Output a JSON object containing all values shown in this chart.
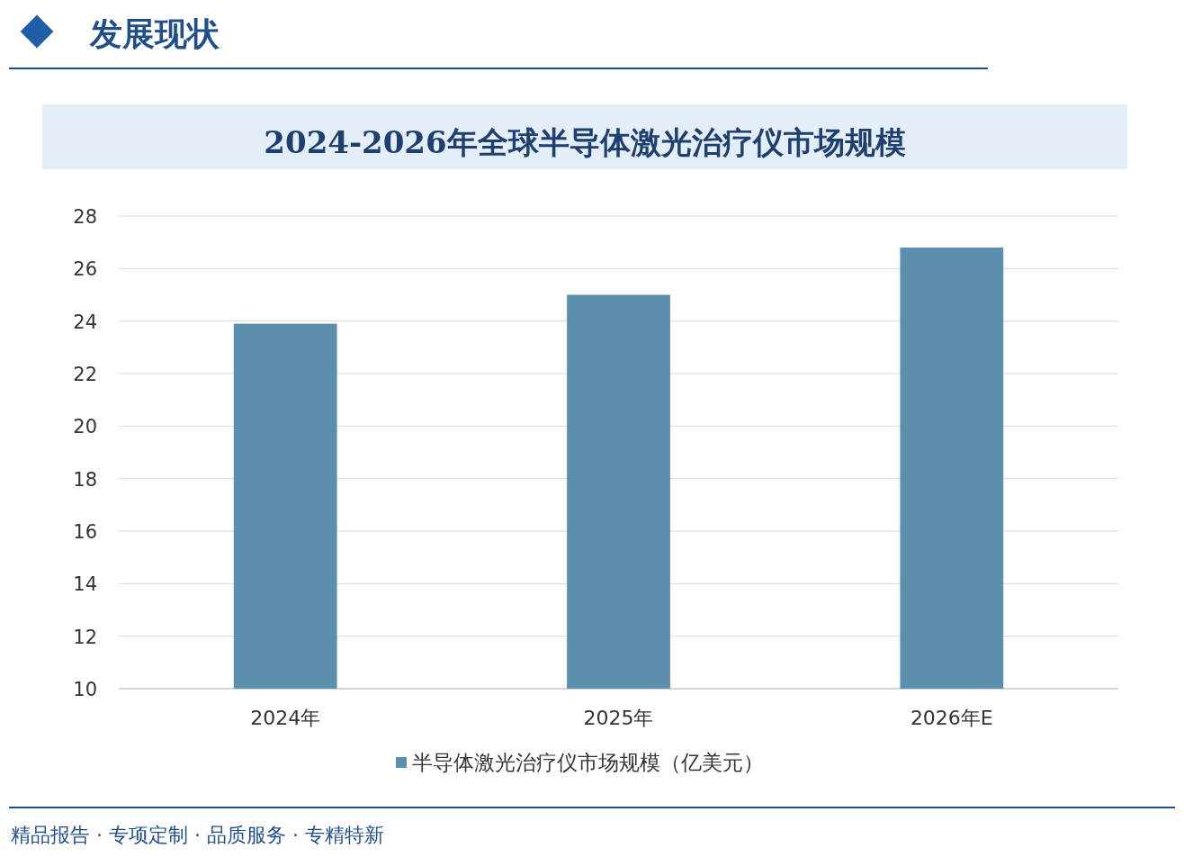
{
  "chart_data": {
    "type": "bar",
    "title": "2024-2026年全球半导体激光治疗仪市场规模",
    "categories": [
      "2024年",
      "2025年",
      "2026年E"
    ],
    "series": [
      {
        "name": "半导体激光治疗仪市场规模（亿美元）",
        "color": "#5b8fad",
        "values": [
          23.9,
          25.0,
          26.8
        ]
      }
    ],
    "ylim": [
      10,
      28
    ],
    "yticks": [
      10,
      12,
      14,
      16,
      18,
      20,
      22,
      24,
      26,
      28
    ],
    "grid": "y",
    "legend": "bottom",
    "annotations": [
      "发展现状",
      "精品报告 · 专项定制 · 品质服务 · 专精特新"
    ]
  }
}
